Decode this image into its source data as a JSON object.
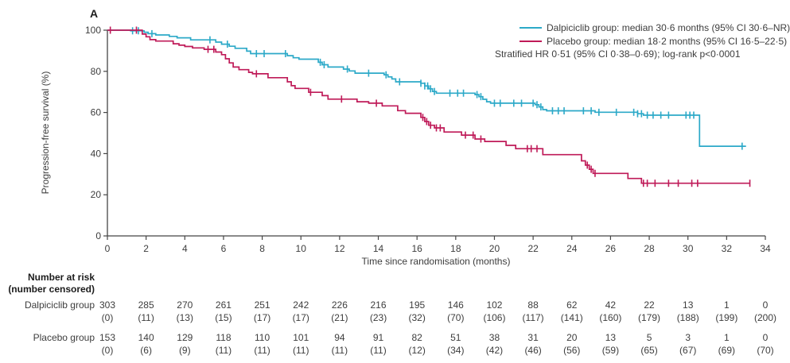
{
  "panel_label": "A",
  "legend": {
    "items": [
      {
        "label": "Dalpiciclib group: median 30·6 months (95% CI 30·6–NR)",
        "color": "#2CA9C8"
      },
      {
        "label": "Placebo group: median 18·2 months (95% CI 16·5–22·5)",
        "color": "#BF1A58"
      }
    ],
    "note": "Stratified HR 0·51 (95% CI 0·38–0·69); log-rank p<0·0001"
  },
  "chart_data": {
    "type": "line",
    "subtype": "kaplan-meier-step",
    "title": "",
    "xlabel": "Time since randomisation (months)",
    "ylabel": "Progression-free survival (%)",
    "xlim": [
      0,
      34
    ],
    "ylim": [
      0,
      100
    ],
    "xticks": [
      0,
      2,
      4,
      6,
      8,
      10,
      12,
      14,
      16,
      18,
      20,
      22,
      24,
      26,
      28,
      30,
      32,
      34
    ],
    "yticks": [
      0,
      20,
      40,
      60,
      80,
      100
    ],
    "grid": false,
    "legend_position": "top-right",
    "axis_color": "#454545",
    "series": [
      {
        "name": "Dalpiciclib group",
        "color": "#2CA9C8",
        "steps": [
          [
            0,
            100
          ],
          [
            1.2,
            99.7
          ],
          [
            1.9,
            99
          ],
          [
            2.1,
            98.3
          ],
          [
            2.5,
            97.7
          ],
          [
            3.2,
            97
          ],
          [
            3.6,
            96.3
          ],
          [
            4.3,
            95.3
          ],
          [
            5.6,
            94.2
          ],
          [
            5.9,
            93.2
          ],
          [
            6.3,
            92.2
          ],
          [
            6.6,
            91.2
          ],
          [
            7.2,
            89.8
          ],
          [
            7.4,
            88.6
          ],
          [
            9.3,
            87.6
          ],
          [
            9.6,
            86.6
          ],
          [
            9.9,
            85.9
          ],
          [
            10.9,
            84.4
          ],
          [
            11.1,
            83.2
          ],
          [
            11.4,
            82.1
          ],
          [
            12.2,
            81.1
          ],
          [
            12.5,
            80.2
          ],
          [
            12.8,
            79.1
          ],
          [
            14.3,
            78.3
          ],
          [
            14.5,
            77.3
          ],
          [
            14.7,
            76.3
          ],
          [
            14.9,
            74.9
          ],
          [
            16.2,
            74.2
          ],
          [
            16.4,
            72.9
          ],
          [
            16.6,
            71.5
          ],
          [
            16.8,
            70.2
          ],
          [
            17.0,
            69.4
          ],
          [
            19.0,
            68.7
          ],
          [
            19.2,
            67.7
          ],
          [
            19.4,
            66.4
          ],
          [
            19.6,
            65.2
          ],
          [
            19.8,
            64.5
          ],
          [
            22.1,
            63.8
          ],
          [
            22.3,
            62.7
          ],
          [
            22.5,
            61.4
          ],
          [
            22.7,
            60.8
          ],
          [
            25.2,
            60.1
          ],
          [
            27.4,
            59.4
          ],
          [
            27.7,
            58.7
          ],
          [
            30.6,
            43.6
          ],
          [
            33.0,
            43.6
          ]
        ],
        "censor_times": [
          1.3,
          1.6,
          2.3,
          5.3,
          6.2,
          7.7,
          8.1,
          9.2,
          11.0,
          11.2,
          12.4,
          13.5,
          14.4,
          15.1,
          16.2,
          16.4,
          16.55,
          16.7,
          16.9,
          17.7,
          18.1,
          18.4,
          19.1,
          19.3,
          20.0,
          20.3,
          21.0,
          21.4,
          22.0,
          22.2,
          22.4,
          23.0,
          23.3,
          23.6,
          24.6,
          25.0,
          25.4,
          26.3,
          27.2,
          27.4,
          27.6,
          27.9,
          28.2,
          28.6,
          29.0,
          29.9,
          30.1,
          30.3,
          32.8
        ]
      },
      {
        "name": "Placebo group",
        "color": "#BF1A58",
        "steps": [
          [
            0,
            100
          ],
          [
            1.8,
            98.1
          ],
          [
            2.0,
            96.8
          ],
          [
            2.2,
            95.4
          ],
          [
            2.5,
            94.7
          ],
          [
            3.4,
            93.4
          ],
          [
            3.7,
            92.7
          ],
          [
            4.0,
            92.1
          ],
          [
            4.4,
            91.4
          ],
          [
            5.0,
            90.7
          ],
          [
            5.6,
            89.4
          ],
          [
            5.9,
            88.1
          ],
          [
            6.1,
            86.1
          ],
          [
            6.3,
            84.1
          ],
          [
            6.5,
            82.1
          ],
          [
            6.8,
            80.8
          ],
          [
            7.3,
            79.5
          ],
          [
            7.5,
            78.8
          ],
          [
            8.3,
            76.9
          ],
          [
            9.3,
            74.9
          ],
          [
            9.5,
            73.0
          ],
          [
            9.7,
            71.7
          ],
          [
            10.4,
            69.8
          ],
          [
            11.1,
            68.2
          ],
          [
            11.4,
            66.5
          ],
          [
            12.9,
            65.2
          ],
          [
            13.5,
            64.5
          ],
          [
            14.2,
            63.2
          ],
          [
            15.0,
            60.9
          ],
          [
            15.4,
            59.6
          ],
          [
            16.2,
            57.6
          ],
          [
            16.4,
            55.6
          ],
          [
            16.6,
            53.8
          ],
          [
            16.9,
            52.5
          ],
          [
            17.4,
            50.5
          ],
          [
            18.3,
            49.0
          ],
          [
            19.0,
            47.1
          ],
          [
            19.5,
            45.9
          ],
          [
            20.6,
            44.0
          ],
          [
            21.1,
            42.4
          ],
          [
            22.5,
            39.5
          ],
          [
            24.5,
            36.5
          ],
          [
            24.7,
            34.4
          ],
          [
            24.9,
            32.4
          ],
          [
            25.1,
            30.4
          ],
          [
            26.9,
            27.9
          ],
          [
            27.6,
            25.6
          ],
          [
            33.2,
            25.6
          ]
        ],
        "censor_times": [
          0.15,
          1.5,
          5.2,
          5.5,
          7.7,
          10.5,
          12.1,
          13.9,
          16.3,
          16.5,
          16.7,
          17.0,
          17.2,
          18.5,
          18.9,
          19.3,
          21.7,
          21.9,
          22.2,
          24.8,
          25.0,
          25.2,
          27.7,
          27.9,
          28.3,
          29.0,
          29.5,
          30.2,
          30.5,
          33.2
        ]
      }
    ]
  },
  "risk_table": {
    "header_line1": "Number at risk",
    "header_line2": "(number censored)",
    "rows": [
      {
        "label": "Dalpiciclib group",
        "at_risk": [
          303,
          285,
          270,
          261,
          251,
          242,
          226,
          216,
          195,
          146,
          102,
          88,
          62,
          42,
          22,
          13,
          1,
          0
        ],
        "censored": [
          0,
          11,
          13,
          15,
          17,
          17,
          21,
          23,
          32,
          70,
          106,
          117,
          141,
          160,
          179,
          188,
          199,
          200
        ]
      },
      {
        "label": "Placebo group",
        "at_risk": [
          153,
          140,
          129,
          118,
          110,
          101,
          94,
          91,
          82,
          51,
          38,
          31,
          20,
          13,
          5,
          3,
          1,
          0
        ],
        "censored": [
          0,
          6,
          9,
          11,
          11,
          11,
          11,
          11,
          12,
          34,
          42,
          46,
          56,
          59,
          65,
          67,
          69,
          70
        ]
      }
    ]
  }
}
